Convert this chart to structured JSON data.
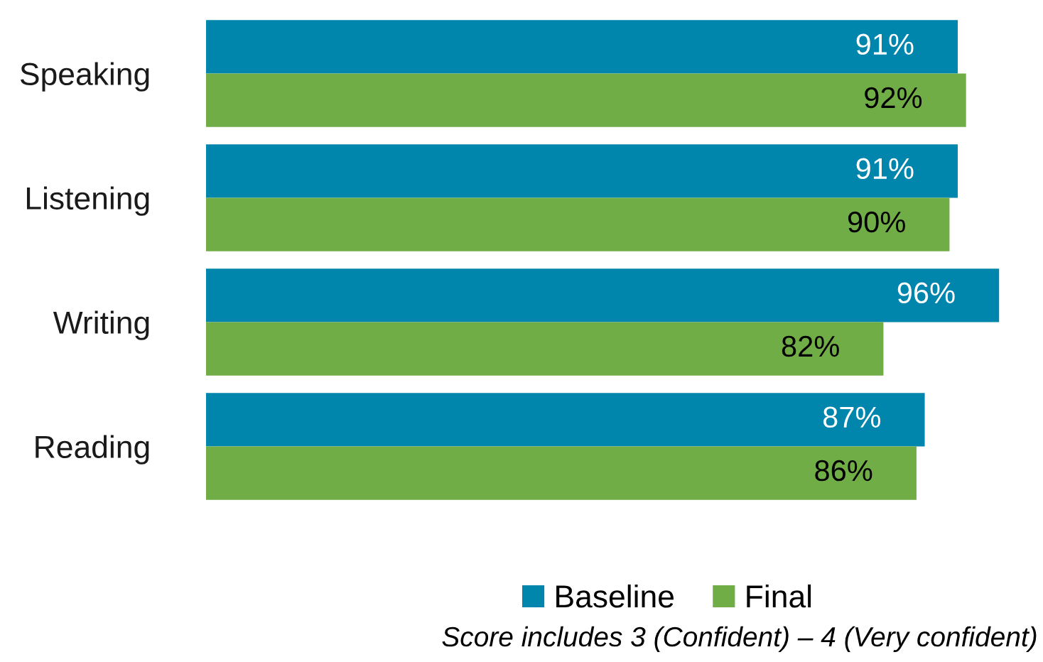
{
  "chart_data": {
    "type": "bar",
    "orientation": "horizontal",
    "categories": [
      "Speaking",
      "Listening",
      "Writing",
      "Reading"
    ],
    "series": [
      {
        "name": "Baseline",
        "color": "#0085ad",
        "values": [
          91,
          91,
          96,
          87
        ],
        "value_labels": [
          "91%",
          "91%",
          "96%",
          "87%"
        ]
      },
      {
        "name": "Final",
        "color": "#70ad47",
        "values": [
          92,
          90,
          82,
          86
        ],
        "value_labels": [
          "92%",
          "90%",
          "82%",
          "86%"
        ]
      }
    ],
    "legend": "bottom",
    "annotations": [
      "Score includes 3 (Confident) – 4 (Very confident)"
    ]
  }
}
